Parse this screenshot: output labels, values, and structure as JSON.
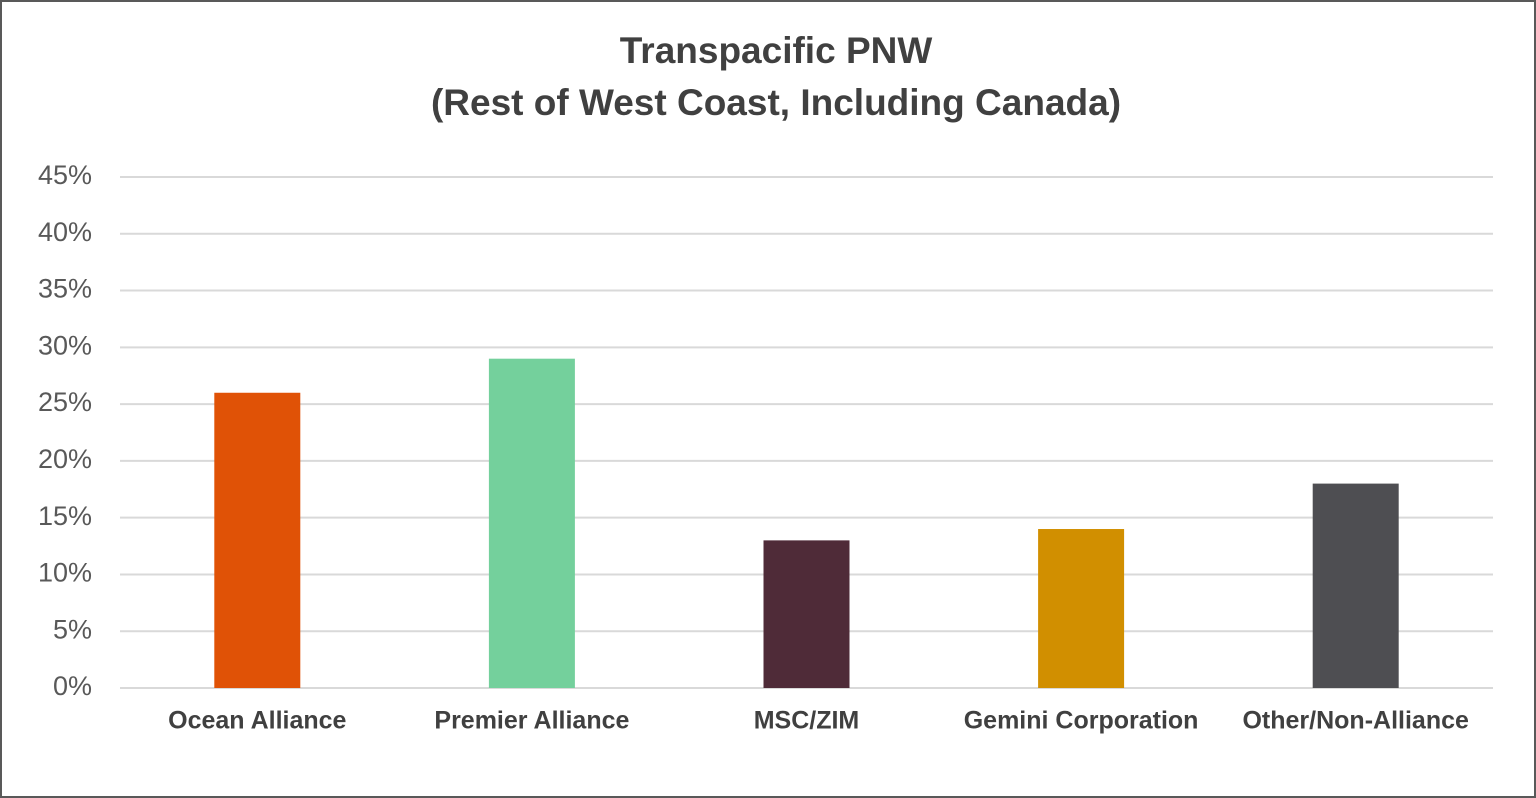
{
  "chart_data": {
    "type": "bar",
    "title": [
      "Transpacific PNW",
      "(Rest of West Coast, Including Canada)"
    ],
    "categories": [
      "Ocean Alliance",
      "Premier Alliance",
      "MSC/ZIM",
      "Gemini Corporation",
      "Other/Non-Alliance"
    ],
    "values": [
      26,
      29,
      13,
      14,
      18
    ],
    "colors": [
      "#e05206",
      "#74d09c",
      "#4f2b38",
      "#d18f00",
      "#4e4e52"
    ],
    "ylim": [
      0,
      45
    ],
    "yticks": [
      {
        "value": 0,
        "label": "0%"
      },
      {
        "value": 5,
        "label": "5%"
      },
      {
        "value": 10,
        "label": "10%"
      },
      {
        "value": 15,
        "label": "15%"
      },
      {
        "value": 20,
        "label": "20%"
      },
      {
        "value": 25,
        "label": "25%"
      },
      {
        "value": 30,
        "label": "30%"
      },
      {
        "value": 35,
        "label": "35%"
      },
      {
        "value": 40,
        "label": "40%"
      },
      {
        "value": 45,
        "label": "45%"
      }
    ],
    "grid": true
  }
}
